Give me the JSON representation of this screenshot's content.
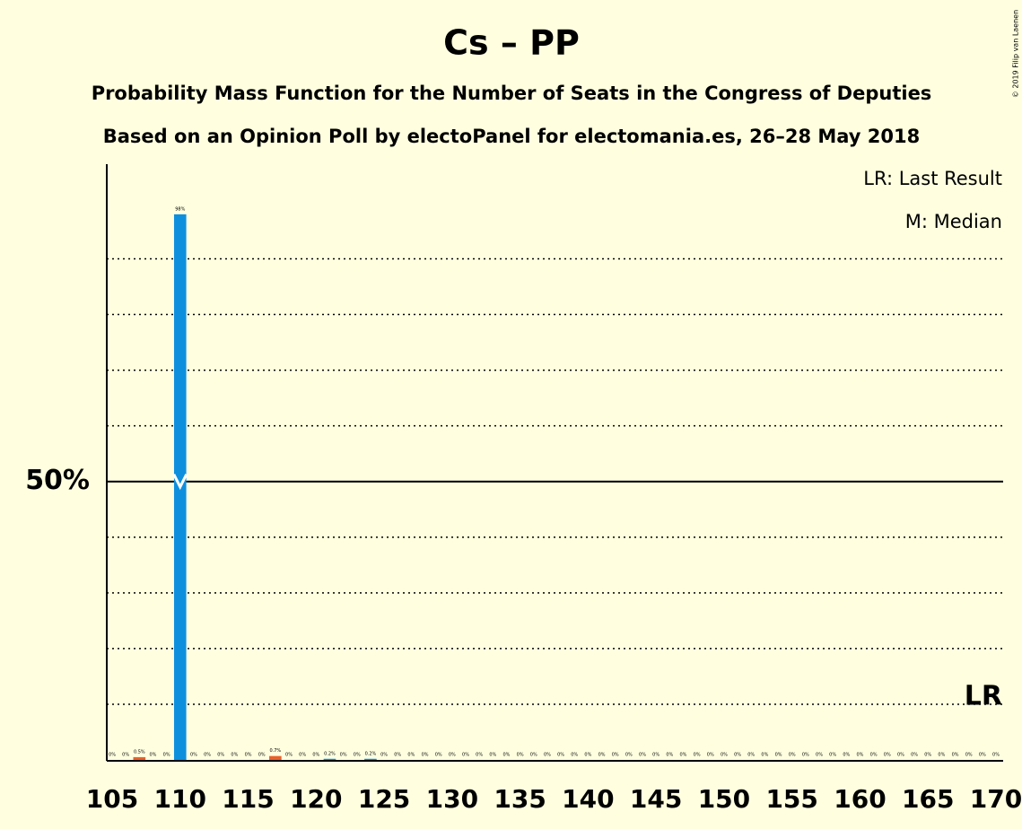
{
  "chart_data": {
    "type": "bar",
    "title": "Cs – PP",
    "subtitle": "Probability Mass Function for the Number of Seats in the Congress of Deputies",
    "subtitle2": "Based on an Opinion Poll by electoPanel for electomania.es, 26–28 May 2018",
    "legend": [
      "LR: Last Result",
      "M: Median"
    ],
    "copyright": "© 2019 Filip van Laenen",
    "x": [
      105,
      106,
      107,
      108,
      109,
      110,
      111,
      112,
      113,
      114,
      115,
      116,
      117,
      118,
      119,
      120,
      121,
      122,
      123,
      124,
      125,
      126,
      127,
      128,
      129,
      130,
      131,
      132,
      133,
      134,
      135,
      136,
      137,
      138,
      139,
      140,
      141,
      142,
      143,
      144,
      145,
      146,
      147,
      148,
      149,
      150,
      151,
      152,
      153,
      154,
      155,
      156,
      157,
      158,
      159,
      160,
      161,
      162,
      163,
      164,
      165,
      166,
      167,
      168,
      169,
      170
    ],
    "values": [
      0,
      0,
      0.5,
      0,
      0,
      98,
      0,
      0,
      0,
      0,
      0,
      0,
      0.7,
      0,
      0,
      0,
      0.2,
      0,
      0,
      0.2,
      0,
      0,
      0,
      0,
      0,
      0,
      0,
      0,
      0,
      0,
      0,
      0,
      0,
      0,
      0,
      0,
      0,
      0,
      0,
      0,
      0,
      0,
      0,
      0,
      0,
      0,
      0,
      0,
      0,
      0,
      0,
      0,
      0,
      0,
      0,
      0,
      0,
      0,
      0,
      0,
      0,
      0,
      0,
      0,
      0,
      0
    ],
    "value_labels": [
      "0%",
      "0%",
      "0.5%",
      "0%",
      "0%",
      "98%",
      "0%",
      "0%",
      "0%",
      "0%",
      "0%",
      "0%",
      "0.7%",
      "0%",
      "0%",
      "0%",
      "0.2%",
      "0%",
      "0%",
      "0.2%",
      "0%",
      "0%",
      "0%",
      "0%",
      "0%",
      "0%",
      "0%",
      "0%",
      "0%",
      "0%",
      "0%",
      "0%",
      "0%",
      "0%",
      "0%",
      "0%",
      "0%",
      "0%",
      "0%",
      "0%",
      "0%",
      "0%",
      "0%",
      "0%",
      "0%",
      "0%",
      "0%",
      "0%",
      "0%",
      "0%",
      "0%",
      "0%",
      "0%",
      "0%",
      "0%",
      "0%",
      "0%",
      "0%",
      "0%",
      "0%",
      "0%",
      "0%",
      "0%",
      "0%",
      "0%",
      "0%"
    ],
    "color": "#0e8fde",
    "alt_color": "#e8612c",
    "alt_x": [
      107,
      117
    ],
    "xlim": [
      105,
      170
    ],
    "xticks": [
      105,
      110,
      115,
      120,
      125,
      130,
      135,
      140,
      145,
      150,
      155,
      160,
      165,
      170
    ],
    "ylim": [
      0,
      107
    ],
    "yticks": [
      {
        "value": 50,
        "label": "50%"
      }
    ],
    "gridlines": [
      10,
      20,
      30,
      40,
      60,
      70,
      80,
      90
    ],
    "median": 110,
    "median_label": "M",
    "last_result": 170,
    "last_result_label": "LR"
  }
}
